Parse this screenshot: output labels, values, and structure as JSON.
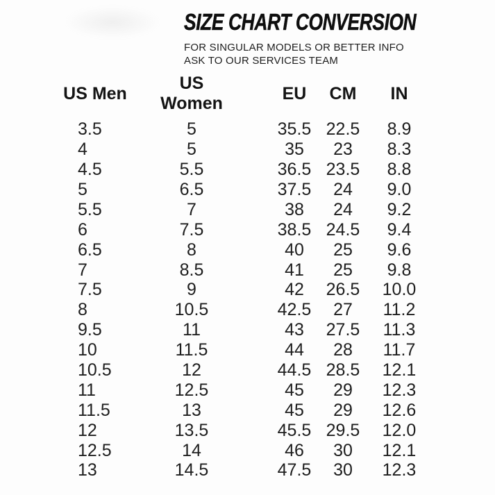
{
  "page": {
    "background_color": "#fdfdfd",
    "text_color": "#1c1c1c"
  },
  "header": {
    "title": "SIZE CHART CONVERSION",
    "subtitle_line1": "FOR SINGULAR MODELS OR BETTER INFO",
    "subtitle_line2": "ASK TO OUR SERVICES TEAM"
  },
  "table": {
    "columns": [
      "US Men",
      "US Women",
      "EU",
      "CM",
      "IN"
    ],
    "rows": [
      [
        "3.5",
        "5",
        "35.5",
        "22.5",
        "8.9"
      ],
      [
        "4",
        "5",
        "35",
        "23",
        "8.3"
      ],
      [
        "4.5",
        "5.5",
        "36.5",
        "23.5",
        "8.8"
      ],
      [
        "5",
        "6.5",
        "37.5",
        "24",
        "9.0"
      ],
      [
        "5.5",
        "7",
        "38",
        "24",
        "9.2"
      ],
      [
        "6",
        "7.5",
        "38.5",
        "24.5",
        "9.4"
      ],
      [
        "6.5",
        "8",
        "40",
        "25",
        "9.6"
      ],
      [
        "7",
        "8.5",
        "41",
        "25",
        "9.8"
      ],
      [
        "7.5",
        "9",
        "42",
        "26.5",
        "10.0"
      ],
      [
        "8",
        "10.5",
        "42.5",
        "27",
        "11.2"
      ],
      [
        "9.5",
        "11",
        "43",
        "27.5",
        "11.3"
      ],
      [
        "10",
        "11.5",
        "44",
        "28",
        "11.7"
      ],
      [
        "10.5",
        "12",
        "44.5",
        "28.5",
        "12.1"
      ],
      [
        "11",
        "12.5",
        "45",
        "29",
        "12.3"
      ],
      [
        "11.5",
        "13",
        "45",
        "29",
        "12.6"
      ],
      [
        "12",
        "13.5",
        "45.5",
        "29.5",
        "12.0"
      ],
      [
        "12.5",
        "14",
        "46",
        "30",
        "12.1"
      ],
      [
        "13",
        "14.5",
        "47.5",
        "30",
        "12.3"
      ]
    ]
  }
}
